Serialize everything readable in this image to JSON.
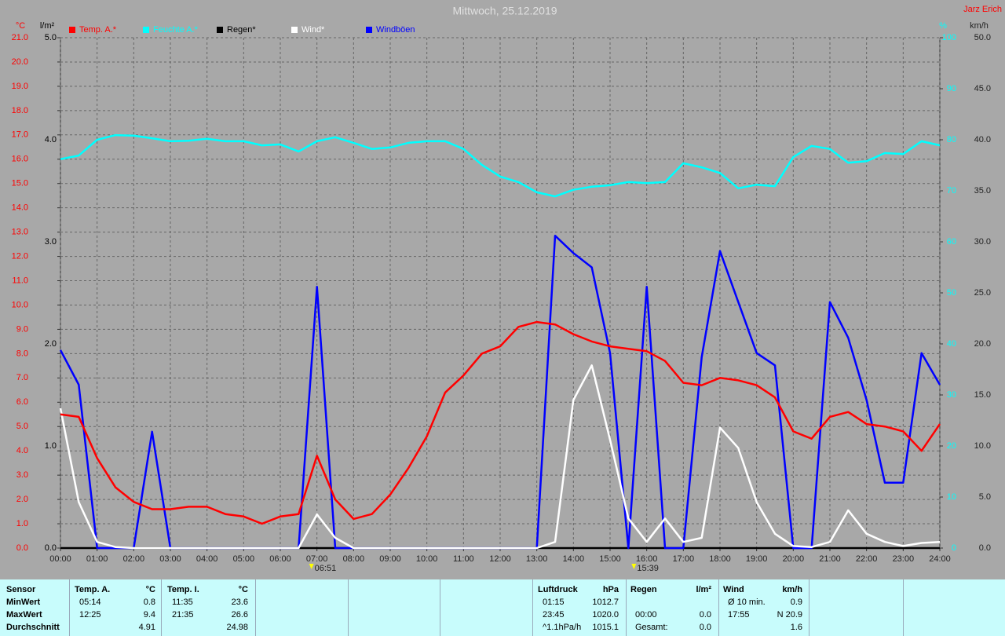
{
  "chart_data": {
    "type": "line",
    "title": "Mittwoch, 25.12.2019",
    "author": "Jarz Erich",
    "y_unit": "°C",
    "y2_unit": "l/m²",
    "y3_unit": "%",
    "y4_unit": "km/h",
    "x": [
      0,
      0.5,
      1,
      1.5,
      2,
      2.5,
      3,
      3.5,
      4,
      4.5,
      5,
      5.5,
      6,
      6.5,
      7,
      7.5,
      8,
      8.5,
      9,
      9.5,
      10,
      10.5,
      11,
      11.5,
      12,
      12.5,
      13,
      13.5,
      14,
      14.5,
      15,
      15.5,
      16,
      16.5,
      17,
      17.5,
      18,
      18.5,
      19,
      19.5,
      20,
      20.5,
      21,
      21.5,
      22,
      22.5,
      23,
      23.5,
      24
    ],
    "xlim": [
      0,
      24
    ],
    "xticks": [
      {
        "value": 0,
        "label": "00:00"
      },
      {
        "value": 1,
        "label": "01:00"
      },
      {
        "value": 2,
        "label": "02:00"
      },
      {
        "value": 3,
        "label": "03:00"
      },
      {
        "value": 4,
        "label": "04:00"
      },
      {
        "value": 5,
        "label": "05:00"
      },
      {
        "value": 6,
        "label": "06:00"
      },
      {
        "value": 7,
        "label": "07:00"
      },
      {
        "value": 8,
        "label": "08:00"
      },
      {
        "value": 9,
        "label": "09:00"
      },
      {
        "value": 10,
        "label": "10:00"
      },
      {
        "value": 11,
        "label": "11:00"
      },
      {
        "value": 12,
        "label": "12:00"
      },
      {
        "value": 13,
        "label": "13:00"
      },
      {
        "value": 14,
        "label": "14:00"
      },
      {
        "value": 15,
        "label": "15:00"
      },
      {
        "value": 16,
        "label": "16:00"
      },
      {
        "value": 17,
        "label": "17:00"
      },
      {
        "value": 18,
        "label": "18:00"
      },
      {
        "value": 19,
        "label": "19:00"
      },
      {
        "value": 20,
        "label": "20:00"
      },
      {
        "value": 21,
        "label": "21:00"
      },
      {
        "value": 22,
        "label": "22:00"
      },
      {
        "value": 23,
        "label": "23:00"
      },
      {
        "value": 24,
        "label": "24:00"
      }
    ],
    "ylim": [
      0,
      21
    ],
    "yticks": [
      {
        "value": 0,
        "label": "0.0"
      },
      {
        "value": 1,
        "label": "1.0"
      },
      {
        "value": 2,
        "label": "2.0"
      },
      {
        "value": 3,
        "label": "3.0"
      },
      {
        "value": 4,
        "label": "4.0"
      },
      {
        "value": 5,
        "label": "5.0"
      },
      {
        "value": 6,
        "label": "6.0"
      },
      {
        "value": 7,
        "label": "7.0"
      },
      {
        "value": 8,
        "label": "8.0"
      },
      {
        "value": 9,
        "label": "9.0"
      },
      {
        "value": 10,
        "label": "10.0"
      },
      {
        "value": 11,
        "label": "11.0"
      },
      {
        "value": 12,
        "label": "12.0"
      },
      {
        "value": 13,
        "label": "13.0"
      },
      {
        "value": 14,
        "label": "14.0"
      },
      {
        "value": 15,
        "label": "15.0"
      },
      {
        "value": 16,
        "label": "16.0"
      },
      {
        "value": 17,
        "label": "17.0"
      },
      {
        "value": 18,
        "label": "18.0"
      },
      {
        "value": 19,
        "label": "19.0"
      },
      {
        "value": 20,
        "label": "20.0"
      },
      {
        "value": 21,
        "label": "21.0"
      }
    ],
    "y2lim": [
      0,
      5
    ],
    "y2ticks": [
      {
        "value": 0,
        "label": "0.0"
      },
      {
        "value": 1,
        "label": "1.0"
      },
      {
        "value": 2,
        "label": "2.0"
      },
      {
        "value": 3,
        "label": "3.0"
      },
      {
        "value": 4,
        "label": "4.0"
      },
      {
        "value": 5,
        "label": "5.0"
      }
    ],
    "y3lim": [
      0,
      100
    ],
    "y3ticks": [
      0,
      10,
      20,
      30,
      40,
      50,
      60,
      70,
      80,
      90,
      100
    ],
    "y4lim": [
      0,
      50
    ],
    "y4ticks": [
      {
        "value": 0,
        "label": "0.0"
      },
      {
        "value": 5,
        "label": "5.0"
      },
      {
        "value": 10,
        "label": "10.0"
      },
      {
        "value": 15,
        "label": "15.0"
      },
      {
        "value": 20,
        "label": "20.0"
      },
      {
        "value": 25,
        "label": "25.0"
      },
      {
        "value": 30,
        "label": "30.0"
      },
      {
        "value": 35,
        "label": "35.0"
      },
      {
        "value": 40,
        "label": "40.0"
      },
      {
        "value": 45,
        "label": "45.0"
      },
      {
        "value": 50,
        "label": "50.0"
      }
    ],
    "grid": true,
    "sun_markers": [
      {
        "value": 6.85,
        "label": "06:51"
      },
      {
        "value": 15.65,
        "label": "15:39"
      }
    ],
    "series": [
      {
        "name": "Temp. A.*",
        "color": "#ff0000",
        "axis": "y",
        "values": [
          5.5,
          5.4,
          3.7,
          2.5,
          1.9,
          1.6,
          1.6,
          1.7,
          1.7,
          1.4,
          1.3,
          1.0,
          1.3,
          1.4,
          3.8,
          2.0,
          1.2,
          1.4,
          2.2,
          3.3,
          4.6,
          6.4,
          7.1,
          8.0,
          8.3,
          9.1,
          9.3,
          9.2,
          8.8,
          8.5,
          8.3,
          8.2,
          8.1,
          7.7,
          6.8,
          6.7,
          7.0,
          6.9,
          6.7,
          6.2,
          4.8,
          4.5,
          5.4,
          5.6,
          5.1,
          5.0,
          4.8,
          4.0,
          5.1
        ]
      },
      {
        "name": "Feuchte A.*",
        "color": "#00ffff",
        "axis": "y3",
        "values": [
          76.2,
          76.9,
          80,
          80.9,
          80.8,
          80.3,
          79.7,
          79.8,
          80.2,
          79.7,
          79.7,
          78.9,
          79.1,
          77.7,
          79.7,
          80.5,
          79.4,
          78.2,
          78.5,
          79.4,
          79.7,
          79.7,
          78.2,
          75.1,
          72.8,
          71.7,
          69.7,
          68.9,
          70.2,
          70.8,
          71.1,
          71.7,
          71.5,
          71.7,
          75.4,
          74.6,
          73.5,
          70.5,
          71.2,
          70.9,
          76.6,
          78.8,
          78.2,
          75.5,
          75.8,
          77.4,
          77.2,
          79.7,
          78.9
        ]
      },
      {
        "name": "Regen*",
        "color": "#000000",
        "axis": "y2",
        "values": [
          0,
          0,
          0,
          0,
          0,
          0,
          0,
          0,
          0,
          0,
          0,
          0,
          0,
          0,
          0,
          0,
          0,
          0,
          0,
          0,
          0,
          0,
          0,
          0,
          0,
          0,
          0,
          0,
          0,
          0,
          0,
          0,
          0,
          0,
          0,
          0,
          0,
          0,
          0,
          0,
          0,
          0,
          0,
          0,
          0,
          0,
          0,
          0,
          0
        ]
      },
      {
        "name": "Wind*",
        "color": "#ffffff",
        "axis": "y4",
        "values": [
          13.7,
          4.5,
          0.6,
          0.1,
          0,
          0,
          0,
          0,
          0,
          0,
          0,
          0,
          0,
          0,
          3.3,
          1.0,
          0,
          0,
          0,
          0,
          0,
          0,
          0,
          0,
          0,
          0,
          0,
          0.6,
          14.5,
          17.9,
          10.6,
          2.9,
          0.6,
          2.9,
          0.6,
          1.0,
          11.8,
          9.8,
          4.5,
          1.4,
          0.2,
          0.1,
          0.6,
          3.7,
          1.4,
          0.6,
          0.2,
          0.5,
          0.6
        ]
      },
      {
        "name": "Windböen",
        "color": "#0000ff",
        "axis": "y4",
        "values": [
          19.4,
          16,
          0,
          0,
          0,
          11.4,
          0,
          0,
          0,
          0,
          0,
          0,
          0,
          0,
          25.6,
          0,
          0,
          0,
          0,
          0,
          0,
          0,
          0,
          0,
          0,
          0,
          0,
          30.6,
          28.9,
          27.5,
          19.1,
          0,
          25.6,
          0,
          0,
          18.7,
          29.1,
          24.1,
          19.1,
          17.9,
          0,
          0,
          24.1,
          20.6,
          14.5,
          6.4,
          6.4,
          19.1,
          16
        ]
      }
    ]
  },
  "stats": {
    "sensor_header": "Sensor",
    "row_labels": [
      "MinWert",
      "MaxWert",
      "Durchschnitt"
    ],
    "groups": [
      {
        "header": "Temp. A.",
        "unit": "°C",
        "rows": [
          {
            "time": "05:14",
            "value": "0.8"
          },
          {
            "time": "12:25",
            "value": "9.4"
          },
          {
            "value": "4.91"
          }
        ]
      },
      {
        "header": "Temp. I.",
        "unit": "°C",
        "rows": [
          {
            "time": "11:35",
            "value": "23.6"
          },
          {
            "time": "21:35",
            "value": "26.6"
          },
          {
            "value": "24.98"
          }
        ]
      },
      {
        "header": "Luftdruck",
        "unit": "hPa",
        "rows": [
          {
            "time": "01:15",
            "value": "1012.7"
          },
          {
            "time": "23:45",
            "value": "1020.0"
          },
          {
            "time": "^1.1hPa/h",
            "value": "1015.1"
          }
        ]
      },
      {
        "header": "Regen",
        "unit": "l/m²",
        "rows": [
          null,
          {
            "time": "00:00",
            "value": "0.0"
          },
          {
            "time": "Gesamt:",
            "value": "0.0"
          }
        ]
      },
      {
        "header": "Wind",
        "unit": "km/h",
        "rows": [
          {
            "time": "Ø 10 min.",
            "value": "0.9"
          },
          {
            "time": "17:55",
            "value": "N 20.9"
          },
          {
            "value": "1.6"
          }
        ]
      }
    ]
  }
}
